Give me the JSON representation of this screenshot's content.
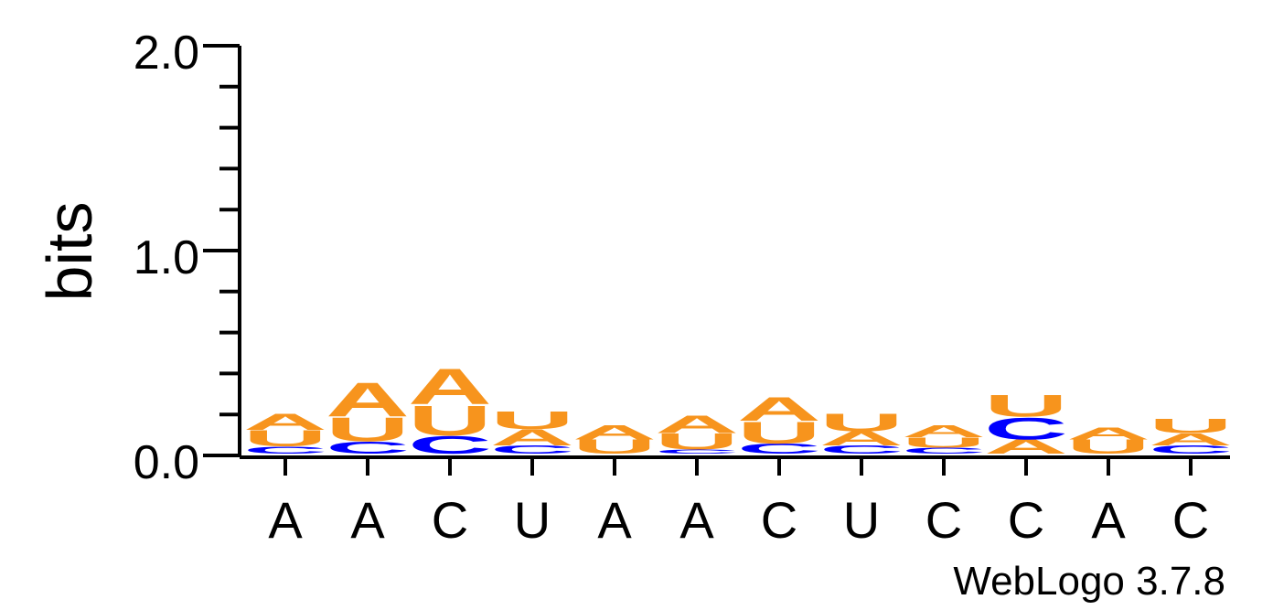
{
  "chart_data": {
    "type": "sequence_logo",
    "ylabel": "bits",
    "ylim": [
      0,
      2
    ],
    "yticks": [
      {
        "value": 0,
        "label": "0.0"
      },
      {
        "value": 1,
        "label": "1.0"
      },
      {
        "value": 2,
        "label": "2.0"
      }
    ],
    "x_labels": [
      "A",
      "A",
      "C",
      "U",
      "A",
      "A",
      "C",
      "U",
      "C",
      "C",
      "A",
      "C"
    ],
    "colors": {
      "A": "#f7941d",
      "U": "#f7941d",
      "C": "#0000ff",
      "G": "#0000ff"
    },
    "positions": [
      {
        "stack": [
          {
            "letter": "C",
            "bits": 0.035
          },
          {
            "letter": "U",
            "bits": 0.08
          },
          {
            "letter": "A",
            "bits": 0.08
          }
        ]
      },
      {
        "stack": [
          {
            "letter": "C",
            "bits": 0.06
          },
          {
            "letter": "U",
            "bits": 0.12
          },
          {
            "letter": "A",
            "bits": 0.17
          }
        ]
      },
      {
        "stack": [
          {
            "letter": "C",
            "bits": 0.09
          },
          {
            "letter": "U",
            "bits": 0.15
          },
          {
            "letter": "A",
            "bits": 0.18
          }
        ]
      },
      {
        "stack": [
          {
            "letter": "C",
            "bits": 0.04
          },
          {
            "letter": "A",
            "bits": 0.08
          },
          {
            "letter": "U",
            "bits": 0.09
          }
        ]
      },
      {
        "stack": [
          {
            "letter": "U",
            "bits": 0.07
          },
          {
            "letter": "A",
            "bits": 0.07
          }
        ]
      },
      {
        "stack": [
          {
            "letter": "C",
            "bits": 0.02
          },
          {
            "letter": "U",
            "bits": 0.08
          },
          {
            "letter": "A",
            "bits": 0.09
          }
        ]
      },
      {
        "stack": [
          {
            "letter": "C",
            "bits": 0.05
          },
          {
            "letter": "U",
            "bits": 0.11
          },
          {
            "letter": "A",
            "bits": 0.12
          }
        ]
      },
      {
        "stack": [
          {
            "letter": "C",
            "bits": 0.04
          },
          {
            "letter": "A",
            "bits": 0.07
          },
          {
            "letter": "U",
            "bits": 0.09
          }
        ]
      },
      {
        "stack": [
          {
            "letter": "C",
            "bits": 0.03
          },
          {
            "letter": "U",
            "bits": 0.05
          },
          {
            "letter": "A",
            "bits": 0.06
          }
        ]
      },
      {
        "stack": [
          {
            "letter": "A",
            "bits": 0.07
          },
          {
            "letter": "C",
            "bits": 0.11
          },
          {
            "letter": "U",
            "bits": 0.11
          }
        ]
      },
      {
        "stack": [
          {
            "letter": "U",
            "bits": 0.07
          },
          {
            "letter": "A",
            "bits": 0.06
          }
        ]
      },
      {
        "stack": [
          {
            "letter": "C",
            "bits": 0.04
          },
          {
            "letter": "A",
            "bits": 0.06
          },
          {
            "letter": "U",
            "bits": 0.07
          }
        ]
      }
    ]
  },
  "footer": {
    "credit": "WebLogo 3.7.8"
  }
}
